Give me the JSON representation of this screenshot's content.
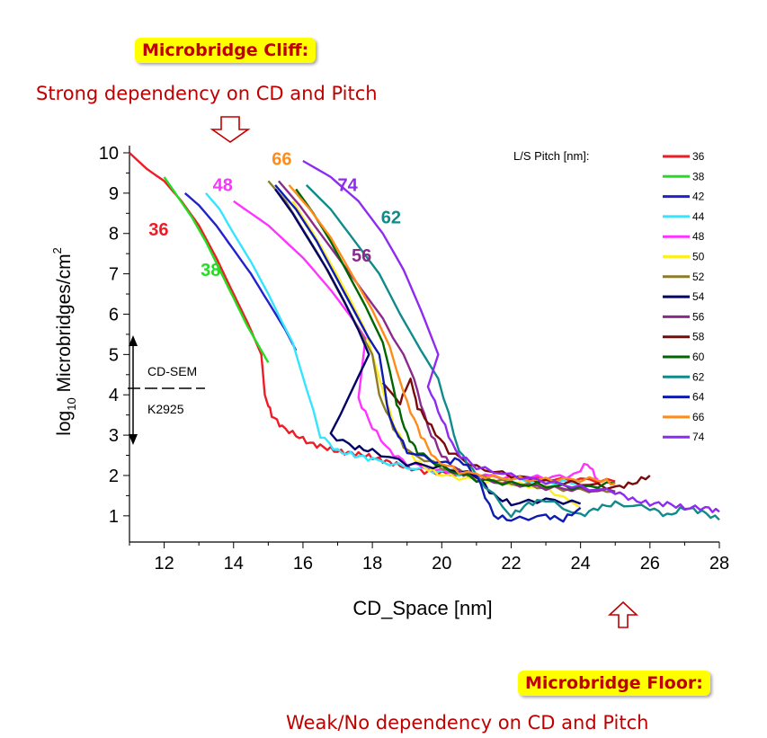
{
  "callouts": {
    "cliff_title": "Microbridge Cliff:",
    "cliff_text": "Strong dependency on CD and Pitch",
    "floor_title": "Microbridge Floor:",
    "floor_text": "Weak/No dependency on CD and Pitch"
  },
  "annotations": {
    "cdsem": "CD-SEM",
    "k2925": "K2925"
  },
  "colors": {
    "callout_bg": "#ffff00",
    "callout_text": "#c00000",
    "arrow_outline": "#c00000"
  },
  "chart_data": {
    "type": "line",
    "xlabel": "CD_Space  [nm]",
    "ylabel_main": "log",
    "ylabel_sub": "10",
    "ylabel_rest": " Microbridges/cm",
    "ylabel_sup": "2",
    "xlim": [
      11,
      28
    ],
    "ylim": [
      0.35,
      10
    ],
    "xticks": [
      12,
      14,
      16,
      18,
      20,
      22,
      24,
      26,
      28
    ],
    "yticks": [
      1,
      2,
      3,
      4,
      5,
      6,
      7,
      8,
      9,
      10
    ],
    "legend_title": "L/S Pitch [nm]:",
    "legend_position": "top-right",
    "series": [
      {
        "name": "36",
        "label": "36",
        "color": "#ee1c25",
        "points": [
          [
            11,
            10
          ],
          [
            11.5,
            9.6
          ],
          [
            12,
            9.3
          ],
          [
            12.5,
            8.8
          ],
          [
            13,
            8.2
          ],
          [
            13.5,
            7.4
          ],
          [
            14,
            6.5
          ],
          [
            14.4,
            5.8
          ],
          [
            14.8,
            5.0
          ],
          [
            14.9,
            4.0
          ],
          [
            15.1,
            3.5
          ],
          [
            15.4,
            3.2
          ],
          [
            15.8,
            3.0
          ],
          [
            16.2,
            2.8
          ],
          [
            16.6,
            2.7
          ],
          [
            17,
            2.6
          ],
          [
            17.4,
            2.55
          ],
          [
            17.8,
            2.5
          ],
          [
            18.2,
            2.4
          ],
          [
            18.6,
            2.3
          ],
          [
            19,
            2.2
          ],
          [
            19.5,
            2.1
          ],
          [
            20,
            2.05
          ],
          [
            21,
            2.0
          ],
          [
            22,
            1.95
          ],
          [
            23,
            1.9
          ],
          [
            24,
            1.9
          ],
          [
            25,
            1.85
          ]
        ]
      },
      {
        "name": "38",
        "label": "38",
        "color": "#22dd22",
        "points": [
          [
            12,
            9.4
          ],
          [
            12.4,
            8.9
          ],
          [
            12.8,
            8.4
          ],
          [
            13.2,
            7.8
          ],
          [
            13.6,
            7.1
          ],
          [
            14,
            6.4
          ],
          [
            14.4,
            5.7
          ],
          [
            14.8,
            5.1
          ],
          [
            15,
            4.8
          ]
        ]
      },
      {
        "name": "42",
        "label": "",
        "color": "#2222cc",
        "points": [
          [
            12.6,
            9.0
          ],
          [
            13,
            8.7
          ],
          [
            13.5,
            8.2
          ],
          [
            14,
            7.6
          ],
          [
            14.5,
            7.0
          ],
          [
            15,
            6.3
          ],
          [
            15.5,
            5.6
          ],
          [
            15.8,
            5.1
          ]
        ]
      },
      {
        "name": "44",
        "label": "",
        "color": "#33e5ff",
        "points": [
          [
            13.2,
            9.0
          ],
          [
            13.6,
            8.6
          ],
          [
            14,
            8.0
          ],
          [
            14.5,
            7.3
          ],
          [
            15,
            6.5
          ],
          [
            15.4,
            5.8
          ],
          [
            15.7,
            5.3
          ],
          [
            16.5,
            3.0
          ],
          [
            17,
            2.6
          ],
          [
            17.5,
            2.5
          ],
          [
            18,
            2.4
          ],
          [
            19,
            2.2
          ],
          [
            20,
            2.1
          ],
          [
            21,
            2.0
          ],
          [
            22,
            1.9
          ],
          [
            23,
            1.85
          ],
          [
            24,
            1.8
          ]
        ]
      },
      {
        "name": "48",
        "label": "48",
        "color": "#ff33ff",
        "points": [
          [
            14,
            8.8
          ],
          [
            15,
            8.2
          ],
          [
            16,
            7.4
          ],
          [
            16.8,
            6.6
          ],
          [
            17.5,
            5.8
          ],
          [
            17.8,
            5.4
          ],
          [
            17.6,
            3.9
          ],
          [
            18,
            3.2
          ],
          [
            18.5,
            2.6
          ],
          [
            19,
            2.3
          ],
          [
            20,
            2.1
          ],
          [
            21,
            2.0
          ],
          [
            22,
            1.95
          ],
          [
            23,
            1.95
          ],
          [
            23.8,
            2.0
          ],
          [
            24.2,
            2.3
          ],
          [
            24.5,
            1.9
          ]
        ]
      },
      {
        "name": "50",
        "label": "",
        "color": "#ffee22",
        "points": [
          [
            15.7,
            8.8
          ],
          [
            16.3,
            8.0
          ],
          [
            16.9,
            7.1
          ],
          [
            17.4,
            6.3
          ],
          [
            17.8,
            5.6
          ],
          [
            18.2,
            4.4
          ],
          [
            18.6,
            3.3
          ],
          [
            19,
            2.6
          ],
          [
            19.5,
            2.2
          ],
          [
            20,
            2.0
          ],
          [
            21,
            1.9
          ],
          [
            22,
            1.8
          ],
          [
            23,
            1.7
          ],
          [
            24,
            1.2
          ]
        ]
      },
      {
        "name": "52",
        "label": "",
        "color": "#8b7d2a",
        "points": [
          [
            15,
            9.3
          ],
          [
            15.5,
            8.8
          ],
          [
            16,
            8.1
          ],
          [
            16.5,
            7.4
          ],
          [
            17,
            6.6
          ],
          [
            17.5,
            5.8
          ],
          [
            18,
            5.0
          ],
          [
            18.2,
            4.0
          ],
          [
            18.6,
            3.2
          ],
          [
            19,
            2.6
          ],
          [
            20,
            2.2
          ],
          [
            21,
            2.0
          ],
          [
            22,
            1.8
          ],
          [
            23,
            1.7
          ],
          [
            24,
            1.65
          ],
          [
            25,
            1.6
          ]
        ]
      },
      {
        "name": "54",
        "label": "",
        "color": "#000066",
        "points": [
          [
            15.2,
            9.1
          ],
          [
            15.7,
            8.5
          ],
          [
            16.2,
            7.8
          ],
          [
            16.7,
            7.1
          ],
          [
            17.2,
            6.3
          ],
          [
            17.6,
            5.6
          ],
          [
            17.9,
            5.0
          ],
          [
            16.8,
            3.0
          ],
          [
            17.5,
            2.7
          ],
          [
            18,
            2.6
          ],
          [
            19,
            2.3
          ],
          [
            20,
            2.2
          ],
          [
            21,
            2.0
          ],
          [
            21.5,
            1.5
          ],
          [
            22,
            1.3
          ],
          [
            23,
            1.4
          ],
          [
            24,
            1.3
          ]
        ]
      },
      {
        "name": "56",
        "label": "56",
        "color": "#8b2a8b",
        "points": [
          [
            15.3,
            9.3
          ],
          [
            15.9,
            8.7
          ],
          [
            16.5,
            8.0
          ],
          [
            17.1,
            7.3
          ],
          [
            17.7,
            6.6
          ],
          [
            18.3,
            5.9
          ],
          [
            18.6,
            5.4
          ],
          [
            18.9,
            5.0
          ],
          [
            19.2,
            4.4
          ],
          [
            19.6,
            3.2
          ],
          [
            20,
            2.5
          ],
          [
            20.5,
            2.1
          ],
          [
            21,
            1.9
          ],
          [
            22,
            1.8
          ],
          [
            23,
            1.7
          ],
          [
            24,
            1.65
          ],
          [
            25,
            1.6
          ]
        ]
      },
      {
        "name": "58",
        "label": "",
        "color": "#7a0a0a",
        "points": [
          [
            18.3,
            4.3
          ],
          [
            18.8,
            3.8
          ],
          [
            19.1,
            4.4
          ],
          [
            19.3,
            3.7
          ],
          [
            19.7,
            3.2
          ],
          [
            20.2,
            2.6
          ],
          [
            21,
            2.2
          ],
          [
            22,
            2.0
          ],
          [
            23,
            1.85
          ],
          [
            24,
            1.8
          ],
          [
            25,
            1.7
          ],
          [
            25.5,
            1.8
          ],
          [
            26,
            2.0
          ]
        ]
      },
      {
        "name": "60",
        "label": "",
        "color": "#006600",
        "points": [
          [
            15.8,
            9.1
          ],
          [
            16.3,
            8.5
          ],
          [
            16.8,
            7.8
          ],
          [
            17.3,
            7.0
          ],
          [
            17.8,
            6.2
          ],
          [
            18.3,
            5.3
          ],
          [
            18.5,
            4.6
          ],
          [
            18.7,
            3.8
          ],
          [
            19,
            3.0
          ],
          [
            19.3,
            2.6
          ],
          [
            20,
            2.2
          ],
          [
            21,
            1.9
          ],
          [
            22,
            1.8
          ],
          [
            23,
            1.75
          ],
          [
            24,
            1.7
          ],
          [
            25,
            1.8
          ]
        ]
      },
      {
        "name": "62",
        "label": "62",
        "color": "#108a8a",
        "points": [
          [
            16.1,
            9.2
          ],
          [
            16.8,
            8.6
          ],
          [
            17.5,
            7.8
          ],
          [
            18.2,
            7.0
          ],
          [
            18.8,
            6.0
          ],
          [
            19.4,
            5.1
          ],
          [
            19.9,
            4.4
          ],
          [
            20.5,
            2.6
          ],
          [
            21,
            2.0
          ],
          [
            22,
            1.0
          ],
          [
            22.5,
            1.3
          ],
          [
            23,
            1.4
          ],
          [
            24,
            1.0
          ],
          [
            24.5,
            1.2
          ],
          [
            25,
            1.3
          ],
          [
            26,
            1.2
          ],
          [
            26.5,
            1.0
          ],
          [
            27,
            1.2
          ],
          [
            27.5,
            1.1
          ],
          [
            28,
            0.9
          ]
        ]
      },
      {
        "name": "64",
        "label": "",
        "color": "#0e1bb0",
        "points": [
          [
            15.2,
            9.2
          ],
          [
            15.8,
            8.6
          ],
          [
            16.4,
            7.8
          ],
          [
            16.9,
            7.0
          ],
          [
            17.4,
            6.2
          ],
          [
            17.9,
            5.4
          ],
          [
            18.2,
            5.0
          ],
          [
            18.5,
            3.4
          ],
          [
            19,
            2.6
          ],
          [
            20,
            2.3
          ],
          [
            20.5,
            2.4
          ],
          [
            21,
            2.0
          ],
          [
            21.5,
            1.0
          ],
          [
            22,
            0.9
          ],
          [
            23,
            1.0
          ],
          [
            23.5,
            0.9
          ],
          [
            24,
            1.2
          ]
        ]
      },
      {
        "name": "66",
        "label": "66",
        "color": "#ff8c1a",
        "points": [
          [
            15.6,
            9.2
          ],
          [
            16.2,
            8.6
          ],
          [
            16.8,
            7.9
          ],
          [
            17.4,
            7.0
          ],
          [
            18,
            6.1
          ],
          [
            18.5,
            5.2
          ],
          [
            18.7,
            4.6
          ],
          [
            19,
            3.8
          ],
          [
            19.4,
            3.0
          ],
          [
            19.8,
            2.4
          ],
          [
            20.5,
            2.1
          ],
          [
            21.5,
            1.95
          ],
          [
            22.5,
            1.9
          ],
          [
            23.5,
            1.9
          ],
          [
            24.5,
            1.9
          ],
          [
            25,
            1.8
          ]
        ]
      },
      {
        "name": "74",
        "label": "74",
        "color": "#8f2bf0",
        "points": [
          [
            16,
            9.8
          ],
          [
            16.8,
            9.4
          ],
          [
            17.6,
            8.8
          ],
          [
            18.3,
            8.0
          ],
          [
            18.9,
            7.1
          ],
          [
            19.4,
            6.1
          ],
          [
            19.9,
            5.0
          ],
          [
            19.6,
            4.2
          ],
          [
            20,
            3.4
          ],
          [
            20.4,
            2.6
          ],
          [
            21,
            2.2
          ],
          [
            22,
            2.0
          ],
          [
            23,
            1.85
          ],
          [
            24,
            1.7
          ],
          [
            25,
            1.6
          ],
          [
            25.5,
            1.4
          ],
          [
            26,
            1.3
          ],
          [
            26.5,
            1.3
          ],
          [
            27,
            1.2
          ],
          [
            27.6,
            1.2
          ],
          [
            28,
            1.1
          ]
        ]
      }
    ]
  }
}
